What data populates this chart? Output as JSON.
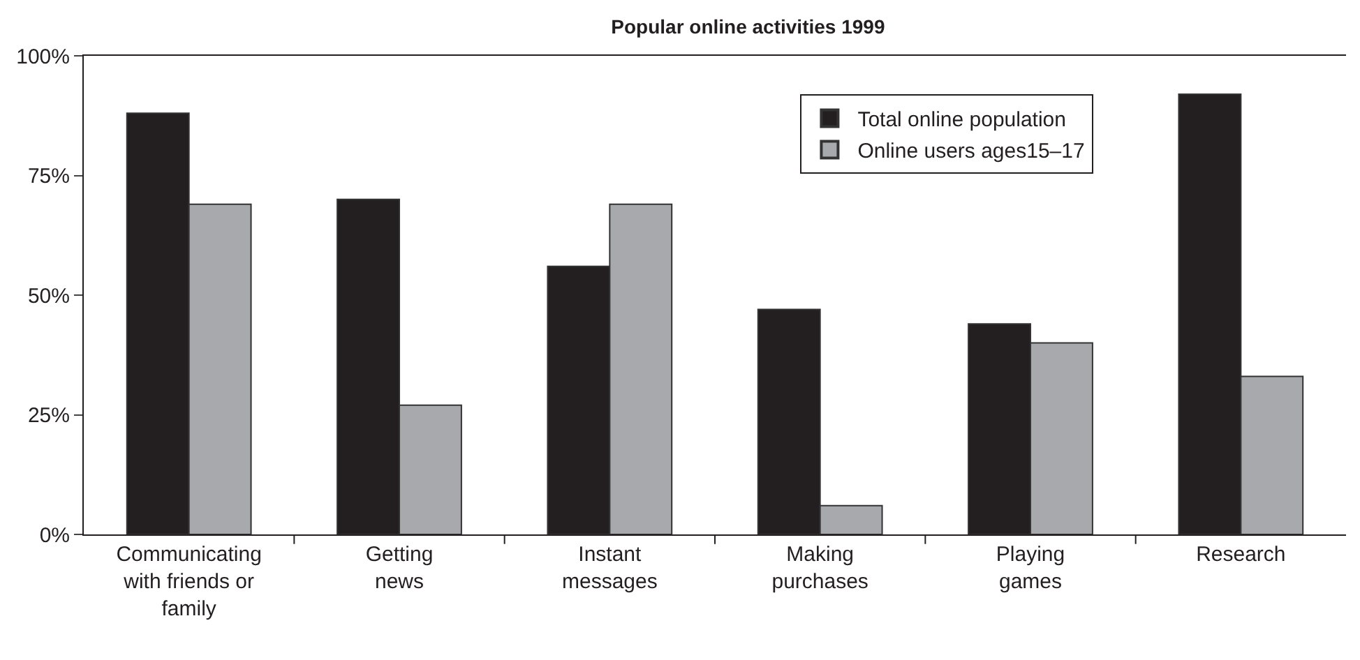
{
  "chart_data": {
    "type": "bar",
    "title": "Popular online activities 1999",
    "categories": [
      "Communicating with friends or family",
      "Getting news",
      "Instant messages",
      "Making purchases",
      "Playing games",
      "Research"
    ],
    "series": [
      {
        "name": "Total online population",
        "color": "#231f20",
        "values": [
          88,
          70,
          56,
          47,
          44,
          92
        ]
      },
      {
        "name": "Online users ages15–17",
        "color": "#a7a9ac",
        "values": [
          69,
          27,
          69,
          6,
          40,
          33
        ]
      }
    ],
    "ylim": [
      0,
      100
    ],
    "yticks": [
      {
        "value": 0,
        "label": "0%"
      },
      {
        "value": 25,
        "label": "25%"
      },
      {
        "value": 50,
        "label": "50%"
      },
      {
        "value": 75,
        "label": "75%"
      },
      {
        "value": 100,
        "label": "100%"
      }
    ],
    "legend": "top right"
  }
}
